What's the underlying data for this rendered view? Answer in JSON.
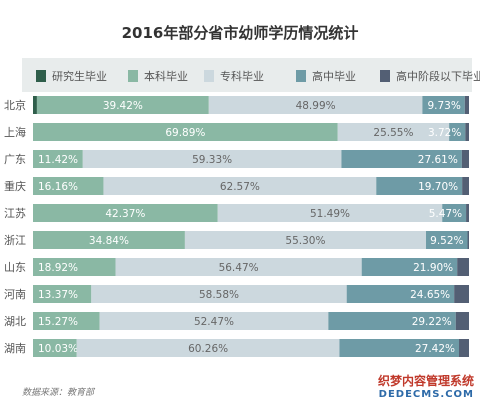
{
  "chart_data": {
    "type": "bar",
    "stacked": true,
    "orientation": "horizontal",
    "title": "2016年部分省市幼师学历情况统计",
    "categories": [
      "北京",
      "上海",
      "广东",
      "重庆",
      "江苏",
      "浙江",
      "山东",
      "河南",
      "湖北",
      "湖南"
    ],
    "series": [
      {
        "name": "研究生毕业",
        "color": "#2f5e4b",
        "values": [
          0.9,
          0.0,
          0.0,
          0.0,
          0.0,
          0.0,
          0.0,
          0.0,
          0.0,
          0.0
        ]
      },
      {
        "name": "本科毕业",
        "color": "#8ab8a4",
        "values": [
          39.42,
          69.89,
          11.42,
          16.16,
          42.37,
          34.84,
          18.92,
          13.37,
          15.27,
          10.03
        ]
      },
      {
        "name": "专科毕业",
        "color": "#ccd8de",
        "values": [
          48.99,
          25.55,
          59.33,
          62.57,
          51.49,
          55.3,
          56.47,
          58.58,
          52.47,
          60.26
        ]
      },
      {
        "name": "高中毕业",
        "color": "#6e9ba6",
        "values": [
          9.73,
          3.72,
          27.61,
          19.7,
          5.47,
          9.52,
          21.9,
          24.65,
          29.22,
          27.42
        ]
      },
      {
        "name": "高中阶段以下毕业",
        "color": "#535f74",
        "values": [
          0.96,
          0.84,
          1.64,
          1.57,
          0.67,
          0.34,
          2.71,
          3.4,
          3.04,
          2.29
        ]
      }
    ],
    "labels": {
      "本科毕业": [
        "39.42%",
        "69.89%",
        "11.42%",
        "16.16%",
        "42.37%",
        "34.84%",
        "18.92%",
        "13.37%",
        "15.27%",
        "10.03%"
      ],
      "专科毕业": [
        "48.99%",
        "25.55%",
        "59.33%",
        "62.57%",
        "51.49%",
        "55.30%",
        "56.47%",
        "58.58%",
        "52.47%",
        "60.26%"
      ],
      "高中毕业": [
        "9.73%",
        "3.72%",
        "27.61%",
        "19.70%",
        "5.47%",
        "9.52%",
        "21.90%",
        "24.65%",
        "29.22%",
        "27.42%"
      ]
    },
    "xlim": [
      0,
      100
    ],
    "legend_position": "top"
  },
  "source": "数据来源：教育部",
  "watermark": {
    "line1": "织梦内容管理系统",
    "line2": "DEDECMS.COM"
  }
}
